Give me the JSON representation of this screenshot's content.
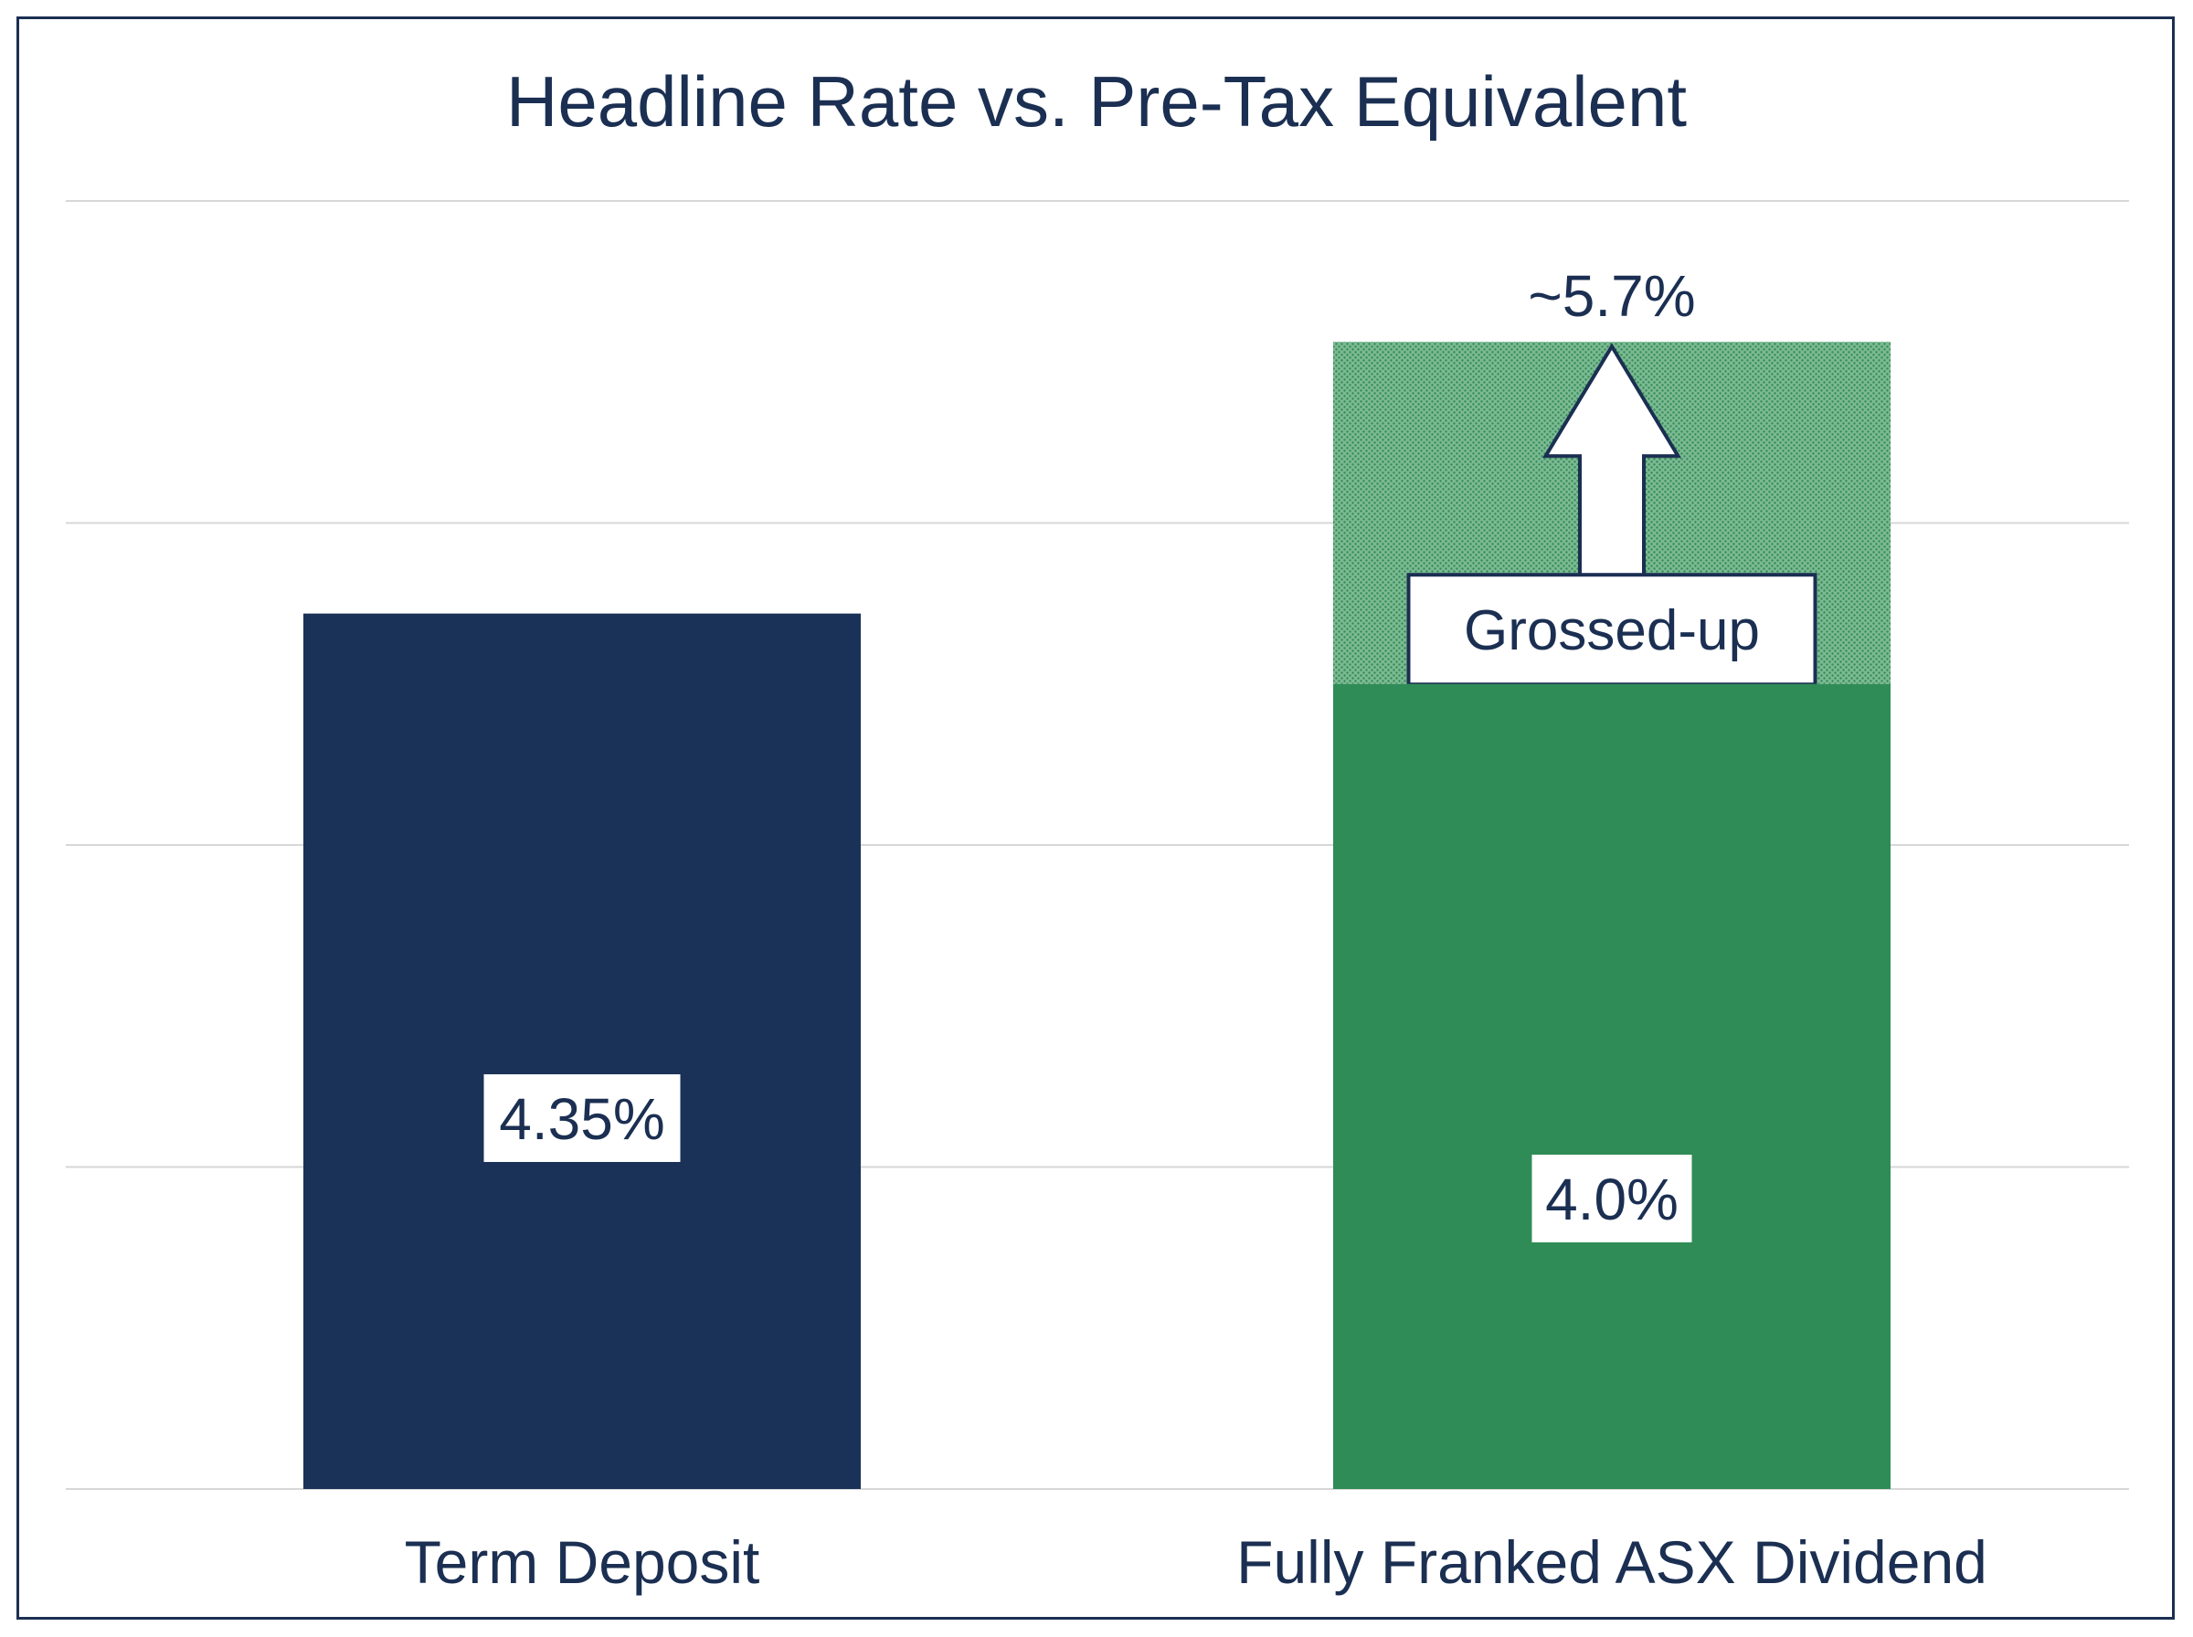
{
  "chart_data": {
    "type": "bar",
    "title": "Headline Rate vs. Pre-Tax Equivalent",
    "categories": [
      "Term Deposit",
      "Fully Franked ASX Dividend"
    ],
    "values": [
      4.35,
      4.0
    ],
    "value_labels": [
      "4.35%",
      "4.0%"
    ],
    "grossed_up": {
      "category": "Fully Franked ASX Dividend",
      "value": 5.7,
      "label": "~5.7%",
      "arrow_label": "Grossed-up"
    },
    "xlabel": "",
    "ylabel": "",
    "ylim": [
      0,
      6.4
    ],
    "grid": true,
    "legend": "none",
    "colors": {
      "term_deposit": "#1b3258",
      "dividend": "#2f8c57",
      "grossed_up": "#6eb084",
      "text": "#1b2f52",
      "grid": "#d7d7d7"
    }
  }
}
